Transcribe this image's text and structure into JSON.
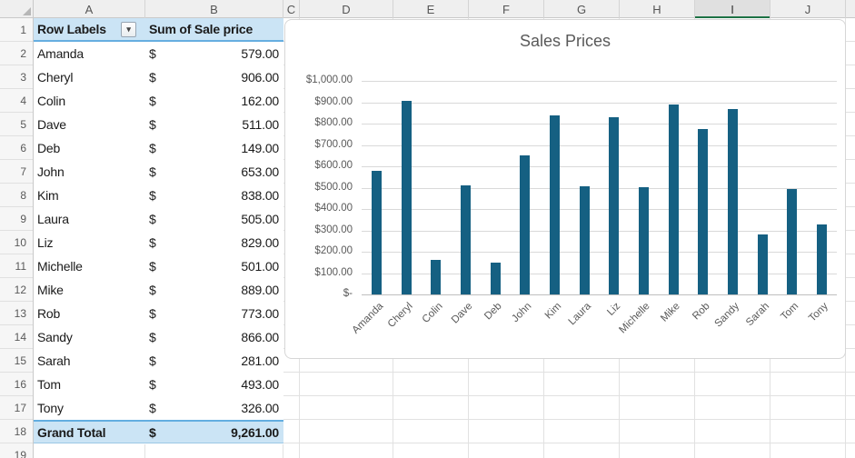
{
  "sheet": {
    "column_headers": [
      "A",
      "B",
      "C",
      "D",
      "E",
      "F",
      "G",
      "H",
      "I",
      "J"
    ],
    "selected_column": "I",
    "row_numbers": [
      "1",
      "2",
      "3",
      "4",
      "5",
      "6",
      "7",
      "8",
      "9",
      "10",
      "11",
      "12",
      "13",
      "14",
      "15",
      "16",
      "17",
      "18",
      "19"
    ]
  },
  "pivot_table": {
    "headers": {
      "row_labels": "Row Labels",
      "value": "Sum of Sale price"
    },
    "filter_icon": "▾",
    "rows": [
      {
        "label": "Amanda",
        "currency": "$",
        "value": "579.00"
      },
      {
        "label": "Cheryl",
        "currency": "$",
        "value": "906.00"
      },
      {
        "label": "Colin",
        "currency": "$",
        "value": "162.00"
      },
      {
        "label": "Dave",
        "currency": "$",
        "value": "511.00"
      },
      {
        "label": "Deb",
        "currency": "$",
        "value": "149.00"
      },
      {
        "label": "John",
        "currency": "$",
        "value": "653.00"
      },
      {
        "label": "Kim",
        "currency": "$",
        "value": "838.00"
      },
      {
        "label": "Laura",
        "currency": "$",
        "value": "505.00"
      },
      {
        "label": "Liz",
        "currency": "$",
        "value": "829.00"
      },
      {
        "label": "Michelle",
        "currency": "$",
        "value": "501.00"
      },
      {
        "label": "Mike",
        "currency": "$",
        "value": "889.00"
      },
      {
        "label": "Rob",
        "currency": "$",
        "value": "773.00"
      },
      {
        "label": "Sandy",
        "currency": "$",
        "value": "866.00"
      },
      {
        "label": "Sarah",
        "currency": "$",
        "value": "281.00"
      },
      {
        "label": "Tom",
        "currency": "$",
        "value": "493.00"
      },
      {
        "label": "Tony",
        "currency": "$",
        "value": "326.00"
      }
    ],
    "grand_total": {
      "label": "Grand Total",
      "currency": "$",
      "value": "9,261.00"
    }
  },
  "chart_data": {
    "type": "bar",
    "title": "Sales Prices",
    "categories": [
      "Amanda",
      "Cheryl",
      "Colin",
      "Dave",
      "Deb",
      "John",
      "Kim",
      "Laura",
      "Liz",
      "Michelle",
      "Mike",
      "Rob",
      "Sandy",
      "Sarah",
      "Tom",
      "Tony"
    ],
    "values": [
      579,
      906,
      162,
      511,
      149,
      653,
      838,
      505,
      829,
      501,
      889,
      773,
      866,
      281,
      493,
      326
    ],
    "xlabel": "",
    "ylabel": "",
    "ylim": [
      0,
      1000
    ],
    "y_tick_values": [
      1000,
      900,
      800,
      700,
      600,
      500,
      400,
      300,
      200,
      100,
      0
    ],
    "y_tick_labels": [
      "$1,000.00",
      "$900.00",
      "$800.00",
      "$700.00",
      "$600.00",
      "$500.00",
      "$400.00",
      "$300.00",
      "$200.00",
      "$100.00",
      "$-"
    ],
    "grid": "horizontal",
    "legend": "none"
  },
  "colors": {
    "bar": "#156082",
    "pivot_header_fill": "#CBE4F5",
    "pivot_accent_border": "#63AEE0",
    "selected_column_underline": "#1E7245",
    "chart_text": "#595959"
  }
}
